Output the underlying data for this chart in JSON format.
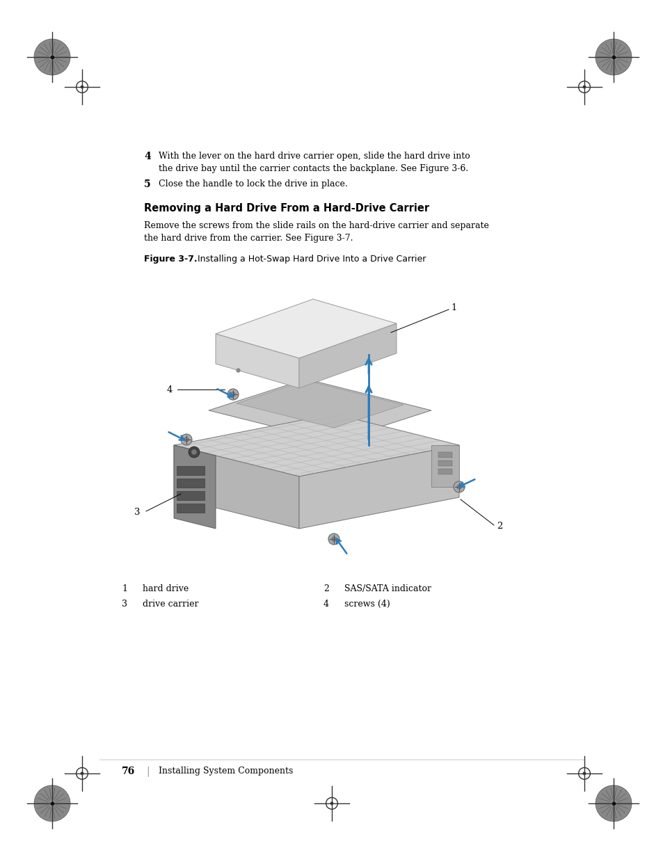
{
  "bg_color": "#ffffff",
  "page_width": 9.54,
  "page_height": 12.35,
  "step4_bold": "4",
  "step4_text": "With the lever on the hard drive carrier open, slide the hard drive into\nthe drive bay until the carrier contacts the backplane. See Figure 3-6.",
  "step5_bold": "5",
  "step5_text": "Close the handle to lock the drive in place.",
  "section_title": "Removing a Hard Drive From a Hard-Drive Carrier",
  "section_body": "Remove the screws from the slide rails on the hard-drive carrier and separate\nthe hard drive from the carrier. See Figure 3-7.",
  "figure_label_bold": "Figure 3-7.",
  "figure_label_text": "Installing a Hot-Swap Hard Drive Into a Drive Carrier",
  "legend": [
    {
      "num": "1",
      "label": "hard drive"
    },
    {
      "num": "2",
      "label": "SAS/SATA indicator"
    },
    {
      "num": "3",
      "label": "drive carrier"
    },
    {
      "num": "4",
      "label": "screws (4)"
    }
  ],
  "footer_page": "76",
  "footer_text": "Installing System Components",
  "arrow_color": "#2b7bba",
  "text_color": "#000000"
}
